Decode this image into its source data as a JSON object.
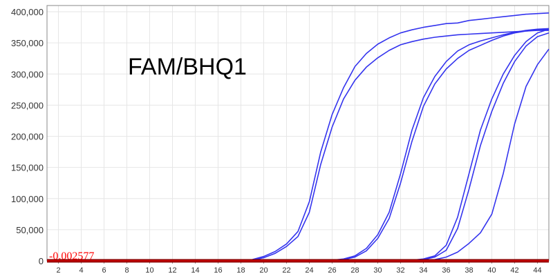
{
  "chart_data": {
    "type": "line",
    "title": "FAM/BHQ1",
    "xlabel": "",
    "ylabel": "",
    "xlim": [
      1,
      45
    ],
    "ylim": [
      0,
      410000
    ],
    "x_ticks": [
      2,
      4,
      6,
      8,
      10,
      12,
      14,
      16,
      18,
      20,
      22,
      24,
      26,
      28,
      30,
      32,
      34,
      36,
      38,
      40,
      42,
      44
    ],
    "y_ticks": [
      0,
      50000,
      100000,
      150000,
      200000,
      250000,
      300000,
      350000,
      400000
    ],
    "y_tick_labels": [
      "0",
      "50,000",
      "100,000",
      "150,000",
      "200,000",
      "250,000",
      "300,000",
      "350,000",
      "400,000"
    ],
    "grid": true,
    "threshold": {
      "value": 0,
      "label": "-0.002577",
      "color": "#ff0000"
    },
    "series_color": "#3333ee",
    "baseline_color": "#8b0000",
    "x": [
      1,
      2,
      3,
      4,
      5,
      6,
      7,
      8,
      9,
      10,
      11,
      12,
      13,
      14,
      15,
      16,
      17,
      18,
      19,
      20,
      21,
      22,
      23,
      24,
      25,
      26,
      27,
      28,
      29,
      30,
      31,
      32,
      33,
      34,
      35,
      36,
      37,
      38,
      39,
      40,
      41,
      42,
      43,
      44,
      45
    ],
    "series": [
      {
        "values": [
          0,
          0,
          0,
          0,
          0,
          0,
          0,
          0,
          0,
          0,
          0,
          0,
          0,
          0,
          0,
          0,
          0,
          0,
          2000,
          7000,
          15000,
          27000,
          47000,
          95000,
          175000,
          235000,
          278000,
          312000,
          333000,
          348000,
          358000,
          366000,
          371000,
          375000,
          378000,
          381000,
          382000,
          386000,
          388000,
          390000,
          392000,
          394000,
          396000,
          397000,
          398000
        ]
      },
      {
        "values": [
          0,
          0,
          0,
          0,
          0,
          0,
          0,
          0,
          0,
          0,
          0,
          0,
          0,
          0,
          0,
          0,
          0,
          0,
          1000,
          5000,
          12000,
          23000,
          39000,
          78000,
          155000,
          215000,
          260000,
          290000,
          311000,
          326000,
          338000,
          347000,
          352000,
          356000,
          359000,
          361000,
          363000,
          364000,
          365000,
          366000,
          367000,
          368000,
          369000,
          370000,
          370000
        ]
      },
      {
        "values": [
          0,
          0,
          0,
          0,
          0,
          0,
          0,
          0,
          0,
          0,
          0,
          0,
          0,
          0,
          0,
          0,
          0,
          0,
          0,
          0,
          0,
          0,
          0,
          0,
          0,
          1000,
          3000,
          8000,
          20000,
          42000,
          78000,
          140000,
          210000,
          262000,
          296000,
          320000,
          337000,
          347000,
          353000,
          358000,
          363000,
          367000,
          370000,
          372000,
          373000
        ]
      },
      {
        "values": [
          0,
          0,
          0,
          0,
          0,
          0,
          0,
          0,
          0,
          0,
          0,
          0,
          0,
          0,
          0,
          0,
          0,
          0,
          0,
          0,
          0,
          0,
          0,
          0,
          0,
          0,
          2000,
          6000,
          16000,
          36000,
          68000,
          125000,
          192000,
          248000,
          284000,
          308000,
          325000,
          338000,
          346000,
          354000,
          361000,
          366000,
          369000,
          371000,
          372000
        ]
      },
      {
        "values": [
          0,
          0,
          0,
          0,
          0,
          0,
          0,
          0,
          0,
          0,
          0,
          0,
          0,
          0,
          0,
          0,
          0,
          0,
          0,
          0,
          0,
          0,
          0,
          0,
          0,
          0,
          0,
          0,
          0,
          0,
          0,
          0,
          1000,
          3000,
          8000,
          25000,
          70000,
          140000,
          210000,
          260000,
          300000,
          330000,
          352000,
          366000,
          372000
        ]
      },
      {
        "values": [
          0,
          0,
          0,
          0,
          0,
          0,
          0,
          0,
          0,
          0,
          0,
          0,
          0,
          0,
          0,
          0,
          0,
          0,
          0,
          0,
          0,
          0,
          0,
          0,
          0,
          0,
          0,
          0,
          0,
          0,
          0,
          0,
          0,
          2000,
          6000,
          17000,
          52000,
          115000,
          185000,
          240000,
          285000,
          320000,
          345000,
          360000,
          366000
        ]
      },
      {
        "values": [
          0,
          0,
          0,
          0,
          0,
          0,
          0,
          0,
          0,
          0,
          0,
          0,
          0,
          0,
          0,
          0,
          0,
          0,
          0,
          0,
          0,
          0,
          0,
          0,
          0,
          0,
          0,
          0,
          0,
          0,
          0,
          0,
          0,
          0,
          2000,
          6000,
          14000,
          28000,
          45000,
          75000,
          140000,
          220000,
          280000,
          315000,
          340000
        ]
      }
    ]
  }
}
